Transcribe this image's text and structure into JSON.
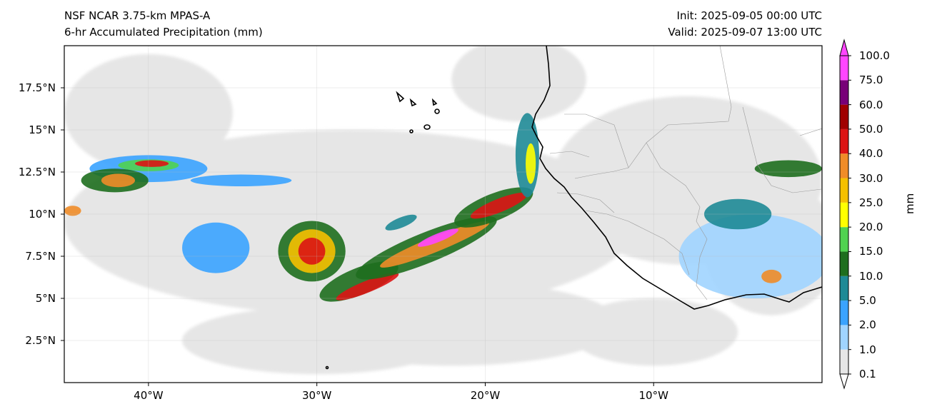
{
  "header": {
    "model": "NSF NCAR 3.75-km MPAS-A",
    "field": "6-hr Accumulated Precipitation (mm)",
    "init": "Init: 2025-09-05 00:00 UTC",
    "valid": "Valid: 2025-09-07 13:00 UTC"
  },
  "map": {
    "extent": {
      "lon": [
        -45,
        0
      ],
      "lat": [
        0,
        20
      ]
    },
    "lat_ticks": [
      {
        "value": 2.5,
        "label": "2.5°N"
      },
      {
        "value": 5,
        "label": "5°N"
      },
      {
        "value": 7.5,
        "label": "7.5°N"
      },
      {
        "value": 10,
        "label": "10°N"
      },
      {
        "value": 12.5,
        "label": "12.5°N"
      },
      {
        "value": 15,
        "label": "15°N"
      },
      {
        "value": 17.5,
        "label": "17.5°N"
      }
    ],
    "lon_ticks": [
      {
        "value": -40,
        "label": "40°W"
      },
      {
        "value": -30,
        "label": "30°W"
      },
      {
        "value": -20,
        "label": "20°W"
      },
      {
        "value": -10,
        "label": "10°W"
      }
    ]
  },
  "colorbar": {
    "unit": "mm",
    "levels": [
      "0.1",
      "1.0",
      "2.0",
      "5.0",
      "10.0",
      "15.0",
      "20.0",
      "25.0",
      "30.0",
      "40.0",
      "50.0",
      "60.0",
      "75.0",
      "100.0"
    ],
    "colors": [
      "#e6e6e6",
      "#a0d4ff",
      "#3aa3ff",
      "#1e8a96",
      "#1e6e1e",
      "#50d250",
      "#ffff00",
      "#f5c000",
      "#f08c28",
      "#dc1414",
      "#a00000",
      "#780078",
      "#ff46ff"
    ]
  },
  "precip_cells": [
    {
      "lon": -40,
      "lat": 12.7,
      "rx": 3.5,
      "ry": 0.8,
      "level": 2
    },
    {
      "lon": -40.0,
      "lat": 12.9,
      "rx": 1.8,
      "ry": 0.35,
      "level": 5
    },
    {
      "lon": -39.8,
      "lat": 13.0,
      "rx": 1.0,
      "ry": 0.2,
      "level": 9
    },
    {
      "lon": -42.0,
      "lat": 12.0,
      "rx": 2.0,
      "ry": 0.7,
      "level": 4
    },
    {
      "lon": -41.8,
      "lat": 12.0,
      "rx": 1.0,
      "ry": 0.4,
      "level": 8
    },
    {
      "lon": -30.3,
      "lat": 7.8,
      "rx": 2.0,
      "ry": 1.8,
      "level": 4
    },
    {
      "lon": -30.3,
      "lat": 7.8,
      "rx": 1.4,
      "ry": 1.3,
      "level": 7
    },
    {
      "lon": -30.3,
      "lat": 7.8,
      "rx": 0.8,
      "ry": 0.8,
      "level": 9
    },
    {
      "lon": -27.5,
      "lat": 6.0,
      "rx": 2.5,
      "ry": 0.8,
      "level": 4
    },
    {
      "lon": -27.0,
      "lat": 5.7,
      "rx": 2.0,
      "ry": 0.35,
      "level": 9
    },
    {
      "lon": -23.5,
      "lat": 8.0,
      "rx": 4.5,
      "ry": 0.9,
      "level": 4
    },
    {
      "lon": -23.0,
      "lat": 8.2,
      "rx": 3.5,
      "ry": 0.45,
      "level": 8
    },
    {
      "lon": -22.8,
      "lat": 8.6,
      "rx": 1.3,
      "ry": 0.25,
      "level": 12
    },
    {
      "lon": -19.5,
      "lat": 10.4,
      "rx": 2.5,
      "ry": 0.8,
      "level": 4
    },
    {
      "lon": -19.2,
      "lat": 10.5,
      "rx": 1.8,
      "ry": 0.4,
      "level": 9
    },
    {
      "lon": -17.5,
      "lat": 13.5,
      "rx": 0.7,
      "ry": 2.5,
      "level": 3
    },
    {
      "lon": -17.3,
      "lat": 13.0,
      "rx": 0.3,
      "ry": 1.2,
      "level": 6
    },
    {
      "lon": -4.0,
      "lat": 7.5,
      "rx": 4.5,
      "ry": 2.5,
      "level": 1
    },
    {
      "lon": -3.0,
      "lat": 6.3,
      "rx": 0.6,
      "ry": 0.4,
      "level": 8
    },
    {
      "lon": -2.0,
      "lat": 12.7,
      "rx": 2.0,
      "ry": 0.5,
      "level": 4
    },
    {
      "lon": -5.0,
      "lat": 10.0,
      "rx": 2.0,
      "ry": 0.9,
      "level": 3
    },
    {
      "lon": -36.0,
      "lat": 8.0,
      "rx": 2.0,
      "ry": 1.5,
      "level": 2
    },
    {
      "lon": -34.5,
      "lat": 12.0,
      "rx": 3.0,
      "ry": 0.35,
      "level": 2
    },
    {
      "lon": -44.5,
      "lat": 10.2,
      "rx": 0.5,
      "ry": 0.3,
      "level": 8
    },
    {
      "lon": -25.0,
      "lat": 9.5,
      "rx": 1.0,
      "ry": 0.3,
      "level": 3
    }
  ],
  "light_regions": [
    {
      "lon": -28,
      "lat": 9.5,
      "rx": 17,
      "ry": 5.5
    },
    {
      "lon": -40,
      "lat": 16,
      "rx": 5,
      "ry": 3.5
    },
    {
      "lon": -22,
      "lat": 3.5,
      "rx": 10,
      "ry": 2.5
    },
    {
      "lon": -30,
      "lat": 2.5,
      "rx": 8,
      "ry": 2
    },
    {
      "lon": -8,
      "lat": 12,
      "rx": 8,
      "ry": 5
    },
    {
      "lon": -3,
      "lat": 8,
      "rx": 4,
      "ry": 4
    },
    {
      "lon": -10,
      "lat": 3,
      "rx": 5,
      "ry": 2
    },
    {
      "lon": -18,
      "lat": 18,
      "rx": 4,
      "ry": 2.5
    }
  ]
}
